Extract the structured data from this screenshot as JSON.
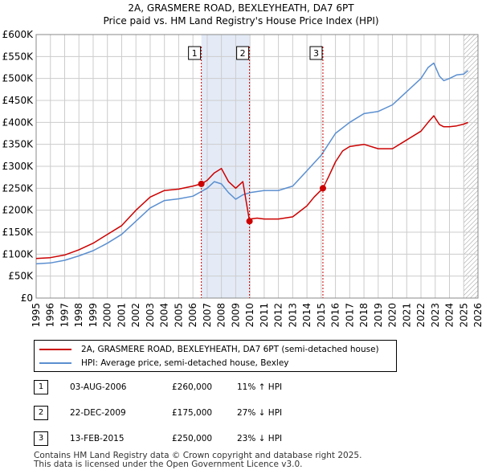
{
  "chart_data": {
    "type": "line",
    "title": "2A, GRASMERE ROAD, BEXLEYHEATH, DA7 6PT",
    "subtitle": "Price paid vs. HM Land Registry's House Price Index (HPI)",
    "xlabel": "",
    "ylabel": "",
    "xlim": [
      1995,
      2026
    ],
    "ylim": [
      0,
      600000
    ],
    "x_ticks": [
      1995,
      1996,
      1997,
      1998,
      1999,
      2000,
      2001,
      2002,
      2003,
      2004,
      2005,
      2006,
      2007,
      2008,
      2009,
      2010,
      2011,
      2012,
      2013,
      2014,
      2015,
      2016,
      2017,
      2018,
      2019,
      2020,
      2021,
      2022,
      2023,
      2024,
      2025,
      2026
    ],
    "y_tick_values": [
      0,
      50000,
      100000,
      150000,
      200000,
      250000,
      300000,
      350000,
      400000,
      450000,
      500000,
      550000,
      600000
    ],
    "y_tick_labels": [
      "£0",
      "£50K",
      "£100K",
      "£150K",
      "£200K",
      "£250K",
      "£300K",
      "£350K",
      "£400K",
      "£450K",
      "£500K",
      "£550K",
      "£600K"
    ],
    "grid": true,
    "legend_position": "below",
    "series": [
      {
        "name": "2A, GRASMERE ROAD, BEXLEYHEATH, DA7 6PT (semi-detached house)",
        "color": "#cc0000",
        "x": [
          1995.0,
          1996.0,
          1997.0,
          1998.0,
          1999.0,
          2000.0,
          2001.0,
          2002.0,
          2003.0,
          2004.0,
          2005.0,
          2006.0,
          2006.59,
          2007.0,
          2007.5,
          2008.0,
          2008.5,
          2009.0,
          2009.5,
          2009.97,
          2010.0,
          2010.5,
          2011.0,
          2012.0,
          2013.0,
          2014.0,
          2014.5,
          2015.12,
          2015.5,
          2016.0,
          2016.5,
          2017.0,
          2018.0,
          2019.0,
          2020.0,
          2021.0,
          2022.0,
          2022.5,
          2022.9,
          2023.3,
          2023.6,
          2024.0,
          2024.5,
          2025.0,
          2025.3
        ],
        "y": [
          90000,
          92000,
          98000,
          110000,
          125000,
          145000,
          165000,
          200000,
          230000,
          245000,
          248000,
          255000,
          260000,
          268000,
          285000,
          295000,
          265000,
          250000,
          265000,
          175000,
          180000,
          182000,
          180000,
          180000,
          185000,
          210000,
          230000,
          250000,
          275000,
          310000,
          335000,
          345000,
          350000,
          340000,
          340000,
          360000,
          380000,
          400000,
          415000,
          395000,
          390000,
          390000,
          392000,
          396000,
          400000
        ]
      },
      {
        "name": "HPI: Average price, semi-detached house, Bexley",
        "color": "#5b8fd0",
        "x": [
          1995.0,
          1996.0,
          1997.0,
          1998.0,
          1999.0,
          2000.0,
          2001.0,
          2002.0,
          2003.0,
          2004.0,
          2005.0,
          2006.0,
          2007.0,
          2007.5,
          2008.0,
          2008.5,
          2009.0,
          2009.5,
          2010.0,
          2011.0,
          2012.0,
          2013.0,
          2014.0,
          2015.0,
          2016.0,
          2017.0,
          2018.0,
          2019.0,
          2020.0,
          2021.0,
          2022.0,
          2022.5,
          2022.9,
          2023.3,
          2023.6,
          2024.0,
          2024.5,
          2025.0,
          2025.3
        ],
        "y": [
          78000,
          80000,
          86000,
          96000,
          108000,
          125000,
          145000,
          175000,
          205000,
          222000,
          226000,
          232000,
          250000,
          265000,
          260000,
          240000,
          225000,
          235000,
          240000,
          245000,
          245000,
          255000,
          290000,
          325000,
          375000,
          400000,
          420000,
          425000,
          440000,
          470000,
          500000,
          525000,
          535000,
          505000,
          495000,
          500000,
          508000,
          510000,
          518000
        ]
      }
    ],
    "annotations": [
      {
        "id": "1",
        "x": 2006.59,
        "y": 260000
      },
      {
        "id": "2",
        "x": 2009.97,
        "y": 175000
      },
      {
        "id": "3",
        "x": 2015.12,
        "y": 250000
      }
    ],
    "shaded_ranges": [
      [
        2006.59,
        2009.97
      ]
    ],
    "hatched_from": 2025.0
  },
  "legend": {
    "property_label": "2A, GRASMERE ROAD, BEXLEYHEATH, DA7 6PT (semi-detached house)",
    "hpi_label": "HPI: Average price, semi-detached house, Bexley"
  },
  "sales": [
    {
      "id": "1",
      "date": "03-AUG-2006",
      "price": "£260,000",
      "hpi": "11% ↑ HPI"
    },
    {
      "id": "2",
      "date": "22-DEC-2009",
      "price": "£175,000",
      "hpi": "27% ↓ HPI"
    },
    {
      "id": "3",
      "date": "13-FEB-2015",
      "price": "£250,000",
      "hpi": "23% ↓ HPI"
    }
  ],
  "footer": {
    "line1": "Contains HM Land Registry data © Crown copyright and database right 2025.",
    "line2": "This data is licensed under the Open Government Licence v3.0."
  }
}
